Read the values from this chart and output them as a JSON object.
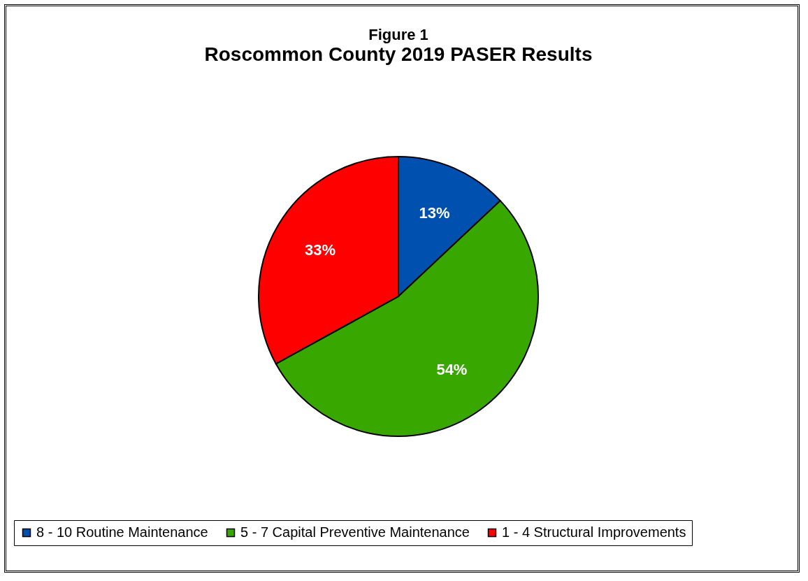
{
  "chart_data": {
    "type": "pie",
    "title": "Figure 1",
    "subtitle": "Roscommon County 2019 PASER Results",
    "categories": [
      "8 - 10 Routine Maintenance",
      "5 - 7 Capital Preventive Maintenance",
      "1 - 4 Structural Improvements"
    ],
    "values": [
      13,
      54,
      33
    ],
    "colors": [
      "#0050b0",
      "#38a800",
      "#ff0000"
    ],
    "value_labels": [
      "13%",
      "54%",
      "33%"
    ],
    "legend": "bottom"
  }
}
